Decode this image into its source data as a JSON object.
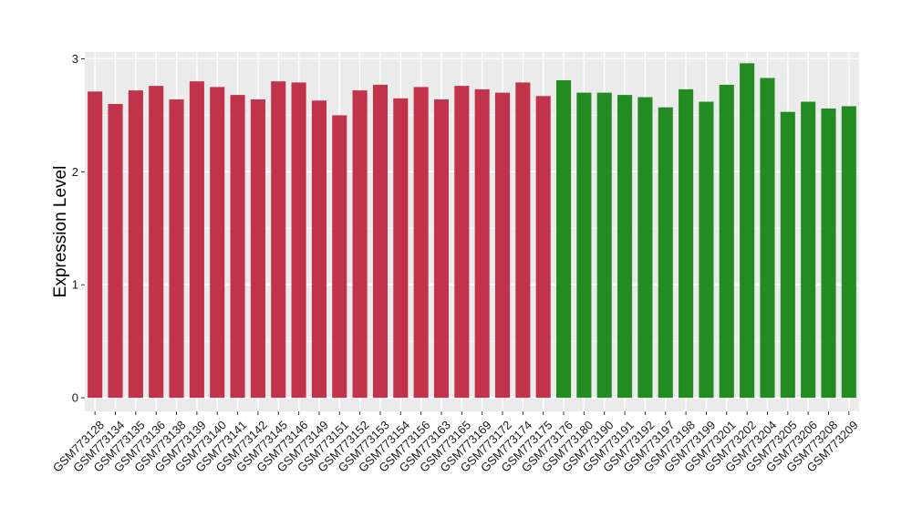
{
  "colors": {
    "panel_background": "#EBEBEB",
    "grid_major": "#FFFFFF",
    "grid_minor": "#F5F5F5",
    "tick_mark": "#333333"
  },
  "chart_data": {
    "type": "bar",
    "xlabel": "",
    "ylabel": "Expression Level",
    "ylim": [
      -0.12,
      3.06
    ],
    "yticks": [
      0,
      1,
      2,
      3
    ],
    "grid": true,
    "legend": "none",
    "categories": [
      "GSM773128",
      "GSM773134",
      "GSM773135",
      "GSM773136",
      "GSM773138",
      "GSM773139",
      "GSM773140",
      "GSM773141",
      "GSM773142",
      "GSM773145",
      "GSM773146",
      "GSM773149",
      "GSM773151",
      "GSM773152",
      "GSM773153",
      "GSM773154",
      "GSM773156",
      "GSM773163",
      "GSM773165",
      "GSM773169",
      "GSM773172",
      "GSM773174",
      "GSM773175",
      "GSM773176",
      "GSM773180",
      "GSM773190",
      "GSM773191",
      "GSM773192",
      "GSM773197",
      "GSM773198",
      "GSM773199",
      "GSM773201",
      "GSM773202",
      "GSM773204",
      "GSM773205",
      "GSM773206",
      "GSM773208",
      "GSM773209"
    ],
    "values": [
      2.71,
      2.6,
      2.72,
      2.76,
      2.64,
      2.8,
      2.75,
      2.68,
      2.64,
      2.8,
      2.79,
      2.63,
      2.5,
      2.72,
      2.77,
      2.65,
      2.75,
      2.64,
      2.76,
      2.73,
      2.7,
      2.79,
      2.67,
      2.81,
      2.7,
      2.7,
      2.68,
      2.66,
      2.57,
      2.73,
      2.62,
      2.77,
      2.96,
      2.83,
      2.53,
      2.62,
      2.56,
      2.58
    ],
    "bar_colors": [
      "#C0334A",
      "#C0334A",
      "#C0334A",
      "#C0334A",
      "#C0334A",
      "#C0334A",
      "#C0334A",
      "#C0334A",
      "#C0334A",
      "#C0334A",
      "#C0334A",
      "#C0334A",
      "#C0334A",
      "#C0334A",
      "#C0334A",
      "#C0334A",
      "#C0334A",
      "#C0334A",
      "#C0334A",
      "#C0334A",
      "#C0334A",
      "#C0334A",
      "#C0334A",
      "#228B22",
      "#228B22",
      "#228B22",
      "#228B22",
      "#228B22",
      "#228B22",
      "#228B22",
      "#228B22",
      "#228B22",
      "#228B22",
      "#228B22",
      "#228B22",
      "#228B22",
      "#228B22",
      "#228B22"
    ]
  }
}
